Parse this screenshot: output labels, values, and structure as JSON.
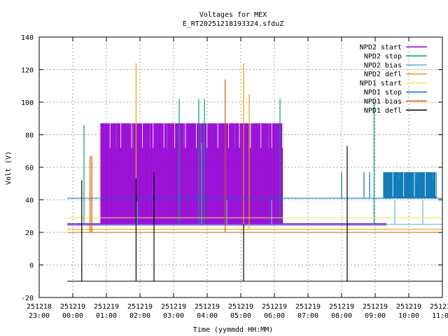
{
  "chart_data": {
    "type": "line",
    "title": "Voltages for MEX",
    "subtitle": "E_RT20251218193324.sfduZ",
    "xlabel": "Time (yymmdd HH:MM)",
    "ylabel": "Volt (V)",
    "ylim": [
      -20,
      140
    ],
    "xlim": [
      "251218 23:00",
      "251219 11:00"
    ],
    "yticks": [
      -20,
      0,
      20,
      40,
      60,
      80,
      100,
      120,
      140
    ],
    "xticks": [
      {
        "date": "251218",
        "time": "23:00"
      },
      {
        "date": "251219",
        "time": "00:00"
      },
      {
        "date": "251219",
        "time": "01:00"
      },
      {
        "date": "251219",
        "time": "02:00"
      },
      {
        "date": "251219",
        "time": "03:00"
      },
      {
        "date": "251219",
        "time": "04:00"
      },
      {
        "date": "251219",
        "time": "05:00"
      },
      {
        "date": "251219",
        "time": "06:00"
      },
      {
        "date": "251219",
        "time": "07:00"
      },
      {
        "date": "251219",
        "time": "08:00"
      },
      {
        "date": "251219",
        "time": "09:00"
      },
      {
        "date": "251219",
        "time": "10:00"
      },
      {
        "date": "251219",
        "time": "11:00"
      }
    ],
    "grid": true,
    "legend_position": "top-right",
    "series": [
      {
        "name": "NPD2 start",
        "color": "#9400d3",
        "segments": [
          {
            "from": "251218 23:50",
            "to": "251219 00:00",
            "value": 25
          },
          {
            "from": "251219 00:00",
            "to": "251219 09:20",
            "value": 25
          }
        ],
        "dense_bands": [
          {
            "from": "251219 00:50",
            "to": "251219 06:15",
            "low": 25,
            "high": 87
          }
        ],
        "spikes": []
      },
      {
        "name": "NPD2 stop",
        "color": "#009e73",
        "segments": [],
        "dense_bands": [],
        "spikes": [
          {
            "t": "251219 00:20",
            "low": 25,
            "high": 86
          },
          {
            "t": "251219 03:10",
            "low": 25,
            "high": 102
          },
          {
            "t": "251219 03:45",
            "low": 25,
            "high": 102
          },
          {
            "t": "251219 03:55",
            "low": 25,
            "high": 102
          },
          {
            "t": "251219 06:10",
            "low": 25,
            "high": 102
          },
          {
            "t": "251219 08:58",
            "low": 25,
            "high": 100
          }
        ]
      },
      {
        "name": "NPD2 bias",
        "color": "#56b4e9",
        "segments": [
          {
            "from": "251218 23:50",
            "to": "251219 11:00",
            "value": 25
          }
        ],
        "dense_bands": [],
        "spikes": [
          {
            "t": "251219 01:55",
            "low": 25,
            "high": 39
          },
          {
            "t": "251219 03:50",
            "low": 25,
            "high": 75
          },
          {
            "t": "251219 04:35",
            "low": 25,
            "high": 40
          },
          {
            "t": "251219 05:55",
            "low": 25,
            "high": 40
          },
          {
            "t": "251219 09:35",
            "low": 25,
            "high": 40
          },
          {
            "t": "251219 10:25",
            "low": 25,
            "high": 40
          }
        ]
      },
      {
        "name": "NPD2 defl",
        "color": "#e69f00",
        "segments": [
          {
            "from": "251218 23:50",
            "to": "251219 11:00",
            "value": 22
          }
        ],
        "dense_bands": [],
        "spikes": [
          {
            "t": "251219 01:53",
            "low": 22,
            "high": 124
          },
          {
            "t": "251219 05:05",
            "low": 22,
            "high": 124
          },
          {
            "t": "251219 05:15",
            "low": 22,
            "high": 105
          }
        ]
      },
      {
        "name": "NPD1 start",
        "color": "#f0e442",
        "segments": [
          {
            "from": "251218 23:50",
            "to": "251219 11:00",
            "value": 29
          }
        ],
        "dense_bands": [],
        "spikes": []
      },
      {
        "name": "NPD1 stop",
        "color": "#0072b2",
        "segments": [
          {
            "from": "251218 23:50",
            "to": "251219 11:00",
            "value": 41
          }
        ],
        "dense_bands": [
          {
            "from": "251219 09:15",
            "to": "251219 10:50",
            "low": 41,
            "high": 57
          }
        ],
        "spikes": [
          {
            "t": "251219 08:00",
            "low": 41,
            "high": 57
          },
          {
            "t": "251219 08:40",
            "low": 41,
            "high": 57
          },
          {
            "t": "251219 08:50",
            "low": 41,
            "high": 57
          }
        ]
      },
      {
        "name": "NPD1 bias",
        "color": "#d55e00",
        "segments": [
          {
            "from": "251218 23:50",
            "to": "251219 11:00",
            "value": 20
          }
        ],
        "dense_bands": [],
        "spikes": [
          {
            "t": "251219 00:31",
            "low": 20,
            "high": 67
          },
          {
            "t": "251219 00:34",
            "low": 20,
            "high": 67
          },
          {
            "t": "251219 04:32",
            "low": 20,
            "high": 114
          }
        ]
      },
      {
        "name": "NPD1 defl",
        "color": "#000000",
        "segments": [
          {
            "from": "251218 23:50",
            "to": "251219 11:00",
            "value": -10
          }
        ],
        "dense_bands": [],
        "spikes": [
          {
            "t": "251219 00:16",
            "low": -10,
            "high": 52
          },
          {
            "t": "251219 01:53",
            "low": -10,
            "high": 53
          },
          {
            "t": "251219 02:25",
            "low": -10,
            "high": 57
          },
          {
            "t": "251219 05:05",
            "low": -10,
            "high": 25
          },
          {
            "t": "251219 08:10",
            "low": -10,
            "high": 73
          }
        ]
      }
    ]
  }
}
